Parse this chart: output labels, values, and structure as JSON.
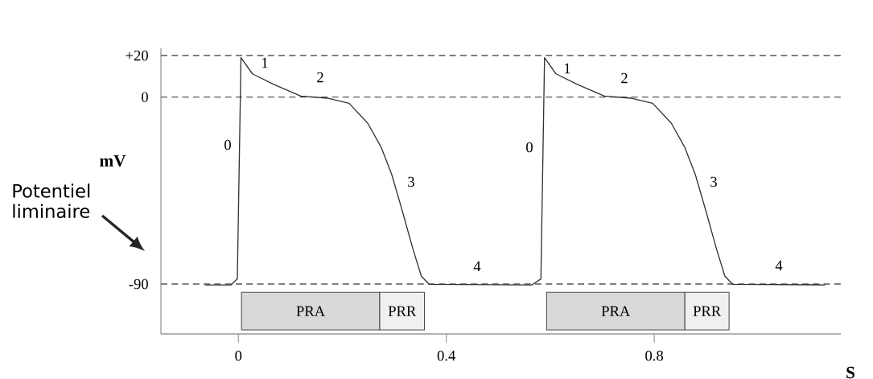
{
  "chart_data": {
    "type": "line",
    "xlabel": "S",
    "ylabel": "mV",
    "xlim": [
      -0.149,
      1.159
    ],
    "ylim": [
      -114,
      23.5
    ],
    "xticks": [
      0,
      0.4,
      0.8
    ],
    "yticks": [
      {
        "value": 20,
        "label": "+20"
      },
      0,
      -90
    ],
    "marker": "none",
    "line_style": "solid",
    "grid": false,
    "series": [
      {
        "color": "#333333",
        "x": [
          -0.063,
          -0.014,
          -0.002,
          0.005,
          0.027,
          0.068,
          0.12,
          0.171,
          0.213,
          0.249,
          0.275,
          0.295,
          0.316,
          0.336,
          0.352,
          0.367,
          0.565,
          0.582,
          0.589,
          0.611,
          0.652,
          0.704,
          0.755,
          0.797,
          0.833,
          0.859,
          0.879,
          0.9,
          0.92,
          0.936,
          0.951,
          1.128
        ],
        "values": [
          -90.4,
          -90.4,
          -87.5,
          19,
          11.2,
          6.1,
          0.5,
          -0.5,
          -3,
          -12.6,
          -24.3,
          -37.2,
          -55.3,
          -73.3,
          -86.2,
          -90.1,
          -90.4,
          -87.5,
          19,
          11.2,
          6.1,
          0.5,
          -0.5,
          -3,
          -12.6,
          -24.3,
          -37.2,
          -55.3,
          -73.3,
          -86.2,
          -90.1,
          -90.4
        ]
      }
    ],
    "ref_lines": [
      {
        "axis": "y",
        "value": 20,
        "color": "#555555",
        "line_style": "dashed"
      },
      {
        "axis": "y",
        "value": 0,
        "color": "#555555",
        "line_style": "dashed"
      },
      {
        "axis": "y",
        "value": -90,
        "color": "#555555",
        "line_style": "dashed"
      }
    ],
    "bands": [
      {
        "axis": "x",
        "from": 0.006,
        "to": 0.272,
        "label": "PRA",
        "color": "#d9d9d9"
      },
      {
        "axis": "x",
        "from": 0.272,
        "to": 0.358,
        "label": "PRR",
        "color": "#f0f0f0"
      },
      {
        "axis": "x",
        "from": 0.593,
        "to": 0.859,
        "label": "PRA",
        "color": "#d9d9d9"
      },
      {
        "axis": "x",
        "from": 0.859,
        "to": 0.944,
        "label": "PRR",
        "color": "#f0f0f0"
      }
    ],
    "annotations": [
      "0",
      "1",
      "2",
      "3",
      "4",
      "0",
      "1",
      "2",
      "3",
      "4",
      "Potentiel liminaire"
    ]
  }
}
